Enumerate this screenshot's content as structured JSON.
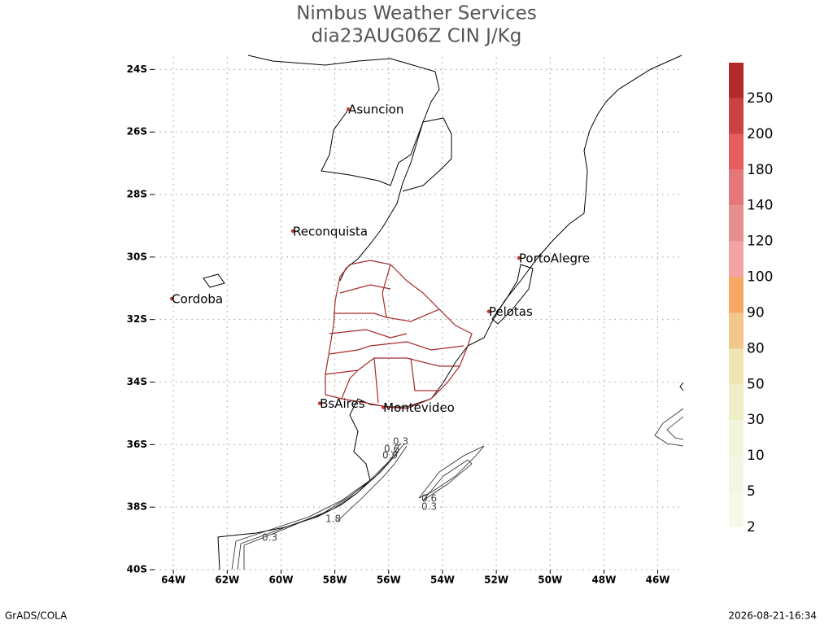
{
  "header": {
    "title": "Nimbus Weather Services",
    "subtitle": "dia23AUG06Z CIN J/Kg"
  },
  "map": {
    "xlim": [
      -64.7,
      -45.05
    ],
    "ylim": [
      -40,
      -23.6
    ],
    "grid": true,
    "xticks": [
      {
        "value": -64,
        "label": "64W"
      },
      {
        "value": -62,
        "label": "62W"
      },
      {
        "value": -60,
        "label": "60W"
      },
      {
        "value": -58,
        "label": "58W"
      },
      {
        "value": -56,
        "label": "56W"
      },
      {
        "value": -54,
        "label": "54W"
      },
      {
        "value": -52,
        "label": "52W"
      },
      {
        "value": -50,
        "label": "50W"
      },
      {
        "value": -48,
        "label": "48W"
      },
      {
        "value": -46,
        "label": "46W"
      }
    ],
    "yticks": [
      {
        "value": -24,
        "label": "24S"
      },
      {
        "value": -26,
        "label": "26S"
      },
      {
        "value": -28,
        "label": "28S"
      },
      {
        "value": -30,
        "label": "30S"
      },
      {
        "value": -32,
        "label": "32S"
      },
      {
        "value": -34,
        "label": "34S"
      },
      {
        "value": -36,
        "label": "36S"
      },
      {
        "value": -38,
        "label": "38S"
      },
      {
        "value": -40,
        "label": "40S"
      }
    ],
    "cities": [
      {
        "name": "Asuncion",
        "lon": -57.5,
        "lat": -25.27
      },
      {
        "name": "Reconquista",
        "lon": -59.56,
        "lat": -29.17
      },
      {
        "name": "Cordoba",
        "lon": -64.06,
        "lat": -31.33
      },
      {
        "name": "PortoAlegre",
        "lon": -51.16,
        "lat": -30.03
      },
      {
        "name": "Pelotas",
        "lon": -52.28,
        "lat": -31.74
      },
      {
        "name": "BsAires",
        "lon": -58.56,
        "lat": -34.68
      },
      {
        "name": "Montevideo",
        "lon": -56.2,
        "lat": -34.81
      }
    ],
    "contour_labels": [
      "0.3",
      "0.6",
      "0.9",
      "1.8",
      "0.3",
      "0.6",
      "0.3"
    ]
  },
  "colorbar": {
    "labels": [
      2,
      5,
      10,
      30,
      50,
      80,
      90,
      100,
      120,
      140,
      180,
      200,
      250
    ],
    "colors": [
      "#f6f8e9",
      "#f4f6e2",
      "#f2f4d8",
      "#eeefc6",
      "#efe3b3",
      "#f2c78c",
      "#f7a963",
      "#f4a3a3",
      "#e68f8f",
      "#e47878",
      "#e55d5d",
      "#cc4242",
      "#b22a2a"
    ]
  },
  "footer": {
    "left": "GrADS/COLA",
    "right": "2026-08-21-16:34"
  }
}
